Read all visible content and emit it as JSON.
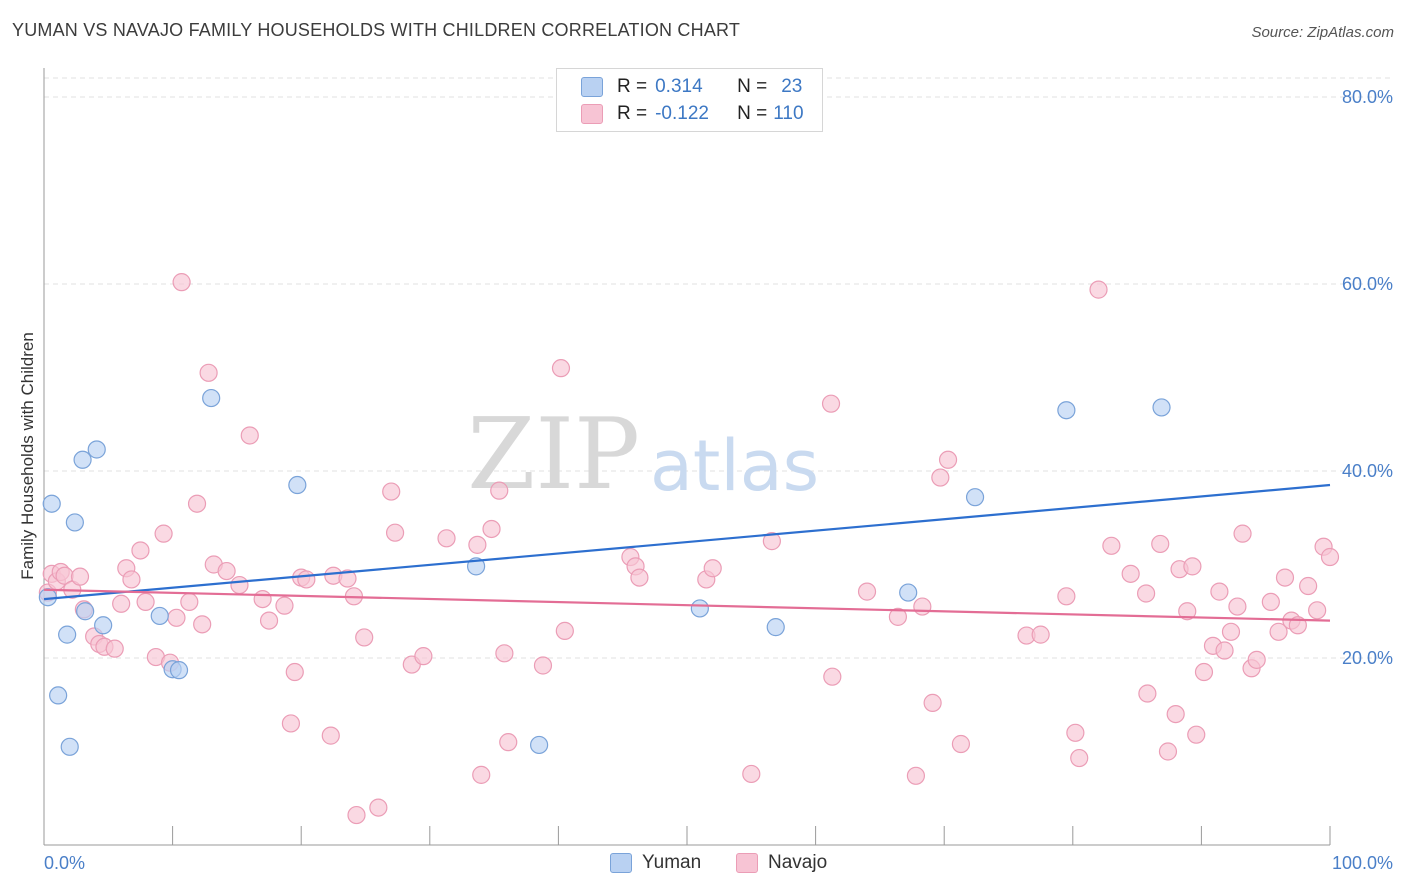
{
  "title": "YUMAN VS NAVAJO FAMILY HOUSEHOLDS WITH CHILDREN CORRELATION CHART",
  "source": "Source: ZipAtlas.com",
  "watermark": {
    "zip": "ZIP",
    "atlas": "atlas"
  },
  "legend": {
    "rows": [
      {
        "r_label": "R =",
        "r_value": "0.314",
        "n_label": "N =",
        "n_value": "23"
      },
      {
        "r_label": "R =",
        "r_value": "-0.122",
        "n_label": "N =",
        "n_value": "110"
      }
    ]
  },
  "bottom_legend": [
    "Yuman",
    "Navajo"
  ],
  "colors": {
    "yuman_fill": "#b9d1f2",
    "yuman_stroke": "#7aa3d9",
    "yuman_line": "#2d6fcf",
    "navajo_fill": "#f7c4d4",
    "navajo_stroke": "#eb9db6",
    "navajo_line": "#e36d95",
    "tick_label": "#4a7fc8",
    "grid": "#e2e2e2"
  },
  "chart_data": {
    "type": "scatter",
    "title": "YUMAN VS NAVAJO FAMILY HOUSEHOLDS WITH CHILDREN CORRELATION CHART",
    "xlabel": "",
    "ylabel": "Family Households with Children",
    "xlim": [
      0,
      100
    ],
    "ylim": [
      0,
      80
    ],
    "x_tick_labels": [
      "0.0%",
      "100.0%"
    ],
    "y_tick_labels": [
      "20.0%",
      "40.0%",
      "60.0%",
      "80.0%"
    ],
    "y_ticks": [
      20,
      40,
      60,
      80
    ],
    "grid": "horizontal dashed",
    "legend_position": "top-center",
    "series": [
      {
        "name": "Yuman",
        "points": [
          [
            0.3,
            26.5
          ],
          [
            0.6,
            36.5
          ],
          [
            1.1,
            16
          ],
          [
            2.0,
            10.5
          ],
          [
            1.8,
            22.5
          ],
          [
            2.4,
            34.5
          ],
          [
            3.0,
            41.2
          ],
          [
            3.2,
            25.0
          ],
          [
            4.1,
            42.3
          ],
          [
            4.6,
            23.5
          ],
          [
            9.0,
            24.5
          ],
          [
            10.0,
            18.8
          ],
          [
            10.5,
            18.7
          ],
          [
            13.0,
            47.8
          ],
          [
            19.7,
            38.5
          ],
          [
            33.6,
            29.8
          ],
          [
            38.5,
            10.7
          ],
          [
            51.0,
            25.3
          ],
          [
            56.9,
            23.3
          ],
          [
            67.2,
            27.0
          ],
          [
            72.4,
            37.2
          ],
          [
            79.5,
            46.5
          ],
          [
            86.9,
            46.8
          ]
        ],
        "trend": {
          "x": [
            0,
            100
          ],
          "y": [
            26.3,
            38.5
          ]
        }
      },
      {
        "name": "Navajo",
        "points": [
          [
            0.3,
            27.0
          ],
          [
            0.6,
            29.0
          ],
          [
            1.0,
            28.2
          ],
          [
            1.3,
            29.2
          ],
          [
            1.6,
            28.8
          ],
          [
            2.2,
            27.3
          ],
          [
            2.8,
            28.7
          ],
          [
            3.1,
            25.2
          ],
          [
            3.9,
            22.3
          ],
          [
            4.3,
            21.5
          ],
          [
            4.7,
            21.2
          ],
          [
            5.5,
            21.0
          ],
          [
            6.0,
            25.8
          ],
          [
            6.4,
            29.6
          ],
          [
            6.8,
            28.4
          ],
          [
            7.5,
            31.5
          ],
          [
            7.9,
            26.0
          ],
          [
            8.7,
            20.1
          ],
          [
            9.3,
            33.3
          ],
          [
            9.8,
            19.5
          ],
          [
            10.3,
            24.3
          ],
          [
            10.7,
            60.2
          ],
          [
            11.3,
            26.0
          ],
          [
            11.9,
            36.5
          ],
          [
            12.3,
            23.6
          ],
          [
            12.8,
            50.5
          ],
          [
            13.2,
            30.0
          ],
          [
            14.2,
            29.3
          ],
          [
            15.2,
            27.8
          ],
          [
            16.0,
            43.8
          ],
          [
            17.0,
            26.3
          ],
          [
            17.5,
            24.0
          ],
          [
            18.7,
            25.6
          ],
          [
            19.2,
            13.0
          ],
          [
            19.5,
            18.5
          ],
          [
            20.0,
            28.6
          ],
          [
            20.4,
            28.4
          ],
          [
            22.3,
            11.7
          ],
          [
            22.5,
            28.8
          ],
          [
            23.6,
            28.5
          ],
          [
            24.1,
            26.6
          ],
          [
            24.3,
            3.2
          ],
          [
            24.9,
            22.2
          ],
          [
            26.0,
            4.0
          ],
          [
            27.0,
            37.8
          ],
          [
            27.3,
            33.4
          ],
          [
            28.6,
            19.3
          ],
          [
            29.5,
            20.2
          ],
          [
            31.3,
            32.8
          ],
          [
            33.7,
            32.1
          ],
          [
            34.0,
            7.5
          ],
          [
            34.8,
            33.8
          ],
          [
            35.4,
            37.9
          ],
          [
            35.8,
            20.5
          ],
          [
            36.1,
            11.0
          ],
          [
            38.8,
            19.2
          ],
          [
            40.2,
            51.0
          ],
          [
            40.5,
            22.9
          ],
          [
            45.6,
            30.8
          ],
          [
            46.0,
            29.8
          ],
          [
            46.3,
            28.6
          ],
          [
            51.5,
            28.4
          ],
          [
            52.0,
            29.6
          ],
          [
            55.0,
            7.6
          ],
          [
            56.6,
            32.5
          ],
          [
            61.2,
            47.2
          ],
          [
            61.3,
            18.0
          ],
          [
            64.0,
            27.1
          ],
          [
            66.4,
            24.4
          ],
          [
            67.8,
            7.4
          ],
          [
            68.3,
            25.5
          ],
          [
            69.1,
            15.2
          ],
          [
            69.7,
            39.3
          ],
          [
            70.3,
            41.2
          ],
          [
            71.3,
            10.8
          ],
          [
            76.4,
            22.4
          ],
          [
            77.5,
            22.5
          ],
          [
            79.5,
            26.6
          ],
          [
            80.2,
            12.0
          ],
          [
            80.5,
            9.3
          ],
          [
            82.0,
            59.4
          ],
          [
            83.0,
            32.0
          ],
          [
            84.5,
            29.0
          ],
          [
            85.7,
            26.9
          ],
          [
            85.8,
            16.2
          ],
          [
            86.8,
            32.2
          ],
          [
            87.4,
            10.0
          ],
          [
            88.0,
            14.0
          ],
          [
            88.3,
            29.5
          ],
          [
            88.9,
            25.0
          ],
          [
            89.3,
            29.8
          ],
          [
            89.6,
            11.8
          ],
          [
            90.2,
            18.5
          ],
          [
            90.9,
            21.3
          ],
          [
            91.4,
            27.1
          ],
          [
            91.8,
            20.8
          ],
          [
            92.3,
            22.8
          ],
          [
            92.8,
            25.5
          ],
          [
            93.2,
            33.3
          ],
          [
            93.9,
            18.9
          ],
          [
            94.3,
            19.8
          ],
          [
            95.4,
            26.0
          ],
          [
            96.0,
            22.8
          ],
          [
            96.5,
            28.6
          ],
          [
            97.0,
            24.0
          ],
          [
            97.5,
            23.5
          ],
          [
            98.3,
            27.7
          ],
          [
            99.0,
            25.1
          ],
          [
            99.5,
            31.9
          ],
          [
            100.0,
            30.8
          ]
        ],
        "trend": {
          "x": [
            0,
            100
          ],
          "y": [
            27.3,
            24.0
          ]
        }
      }
    ]
  }
}
